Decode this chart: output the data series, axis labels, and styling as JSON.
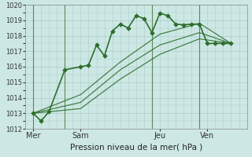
{
  "title": "",
  "xlabel": "Pression niveau de la mer( hPa )",
  "ylim": [
    1012,
    1020
  ],
  "xlim": [
    0,
    14
  ],
  "background_color": "#cde8e4",
  "grid_color": "#a8ccc8",
  "line_color": "#2d6e2d",
  "day_labels": [
    "Mer",
    "Sam",
    "Jeu",
    "Ven"
  ],
  "day_positions": [
    0.5,
    3.5,
    8.5,
    11.5
  ],
  "vline_positions": [
    0.5,
    2.5,
    8.0,
    11.0
  ],
  "series_main": {
    "x": [
      0.5,
      1.0,
      1.5,
      2.5,
      3.5,
      4.0,
      4.5,
      5.0,
      5.5,
      6.0,
      6.5,
      7.0,
      7.5,
      8.0,
      8.5,
      9.0,
      9.5,
      10.0,
      10.5,
      11.0,
      11.5,
      12.0,
      12.5,
      13.0
    ],
    "y": [
      1013.0,
      1012.5,
      1013.1,
      1015.8,
      1016.0,
      1016.1,
      1017.4,
      1016.7,
      1018.3,
      1018.75,
      1018.5,
      1019.3,
      1019.1,
      1018.2,
      1019.45,
      1019.3,
      1018.75,
      1018.7,
      1018.75,
      1018.75,
      1017.5,
      1017.5,
      1017.5,
      1017.5
    ],
    "marker": "D",
    "linewidth": 1.2,
    "markersize": 2.8
  },
  "series_smooth": [
    {
      "x": [
        0.5,
        3.5,
        6.0,
        8.5,
        11.0,
        13.0
      ],
      "y": [
        1013.0,
        1013.3,
        1015.2,
        1016.8,
        1017.8,
        1017.5
      ]
    },
    {
      "x": [
        0.5,
        3.5,
        6.0,
        8.5,
        11.0,
        13.0
      ],
      "y": [
        1013.0,
        1013.7,
        1015.8,
        1017.4,
        1018.2,
        1017.5
      ]
    },
    {
      "x": [
        0.5,
        3.5,
        6.0,
        8.5,
        11.0,
        13.0
      ],
      "y": [
        1013.0,
        1014.2,
        1016.3,
        1018.1,
        1018.8,
        1017.5
      ]
    }
  ],
  "yticks": [
    1012,
    1013,
    1014,
    1015,
    1016,
    1017,
    1018,
    1019,
    1020
  ],
  "ytick_fontsize": 6,
  "xtick_fontsize": 7,
  "xlabel_fontsize": 7.5
}
